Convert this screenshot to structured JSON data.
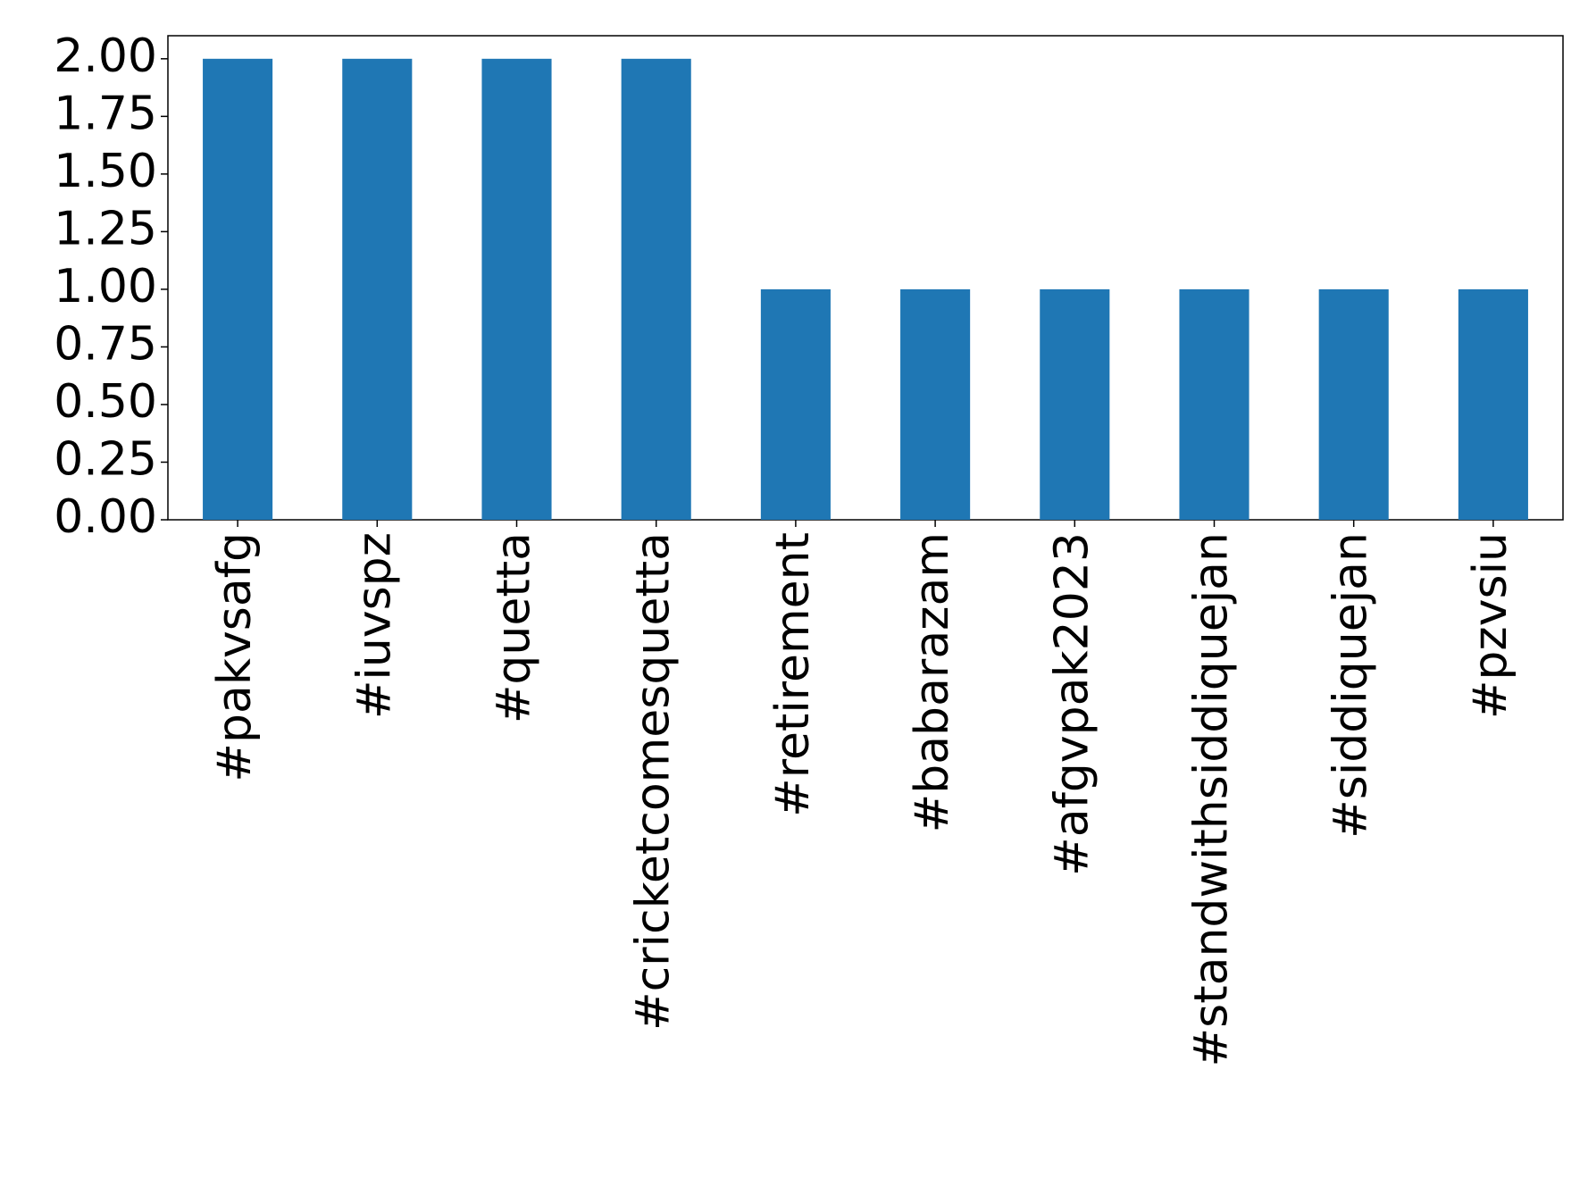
{
  "chart_data": {
    "type": "bar",
    "categories": [
      "#pakvsafg",
      "#iuvspz",
      "#quetta",
      "#cricketcomesquetta",
      "#retirement",
      "#babarazam",
      "#afgvpak2023",
      "#standwithsiddiquejan",
      "#siddiquejan",
      "#pzvsiu"
    ],
    "values": [
      2,
      2,
      2,
      2,
      1,
      1,
      1,
      1,
      1,
      1
    ],
    "color": "#1f77b4",
    "ylim": [
      0,
      2.1
    ],
    "yticks": [
      {
        "value": 0,
        "label": "0.00"
      },
      {
        "value": 0.25,
        "label": "0.25"
      },
      {
        "value": 0.5,
        "label": "0.50"
      },
      {
        "value": 0.75,
        "label": "0.75"
      },
      {
        "value": 1,
        "label": "1.00"
      },
      {
        "value": 1.25,
        "label": "1.25"
      },
      {
        "value": 1.5,
        "label": "1.50"
      },
      {
        "value": 1.75,
        "label": "1.75"
      },
      {
        "value": 2,
        "label": "2.00"
      }
    ],
    "grid": false
  }
}
